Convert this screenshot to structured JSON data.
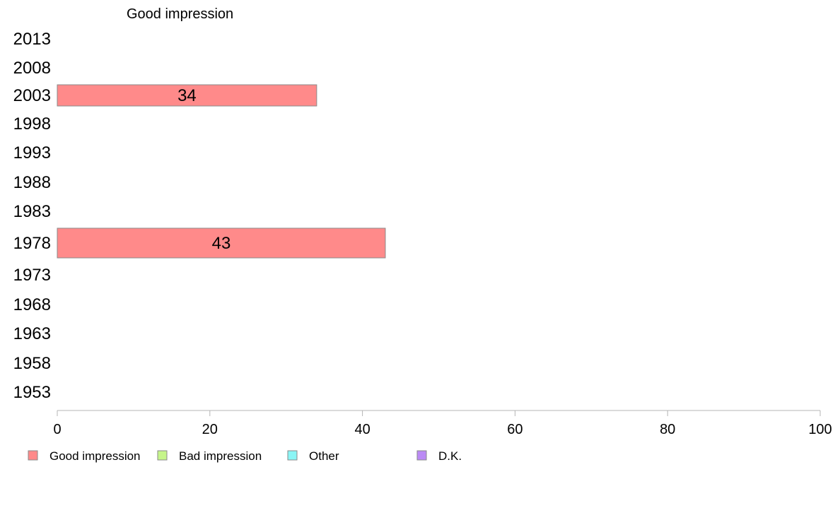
{
  "chart_data": {
    "type": "bar",
    "orientation": "horizontal",
    "title": "",
    "panel_title": "Good impression",
    "categories": [
      "2013",
      "2008",
      "2003",
      "1998",
      "1993",
      "1988",
      "1983",
      "1978",
      "1973",
      "1968",
      "1963",
      "1958",
      "1953"
    ],
    "series": [
      {
        "name": "Good impression",
        "color": "#ff8a8a",
        "values": [
          null,
          null,
          34,
          null,
          null,
          null,
          null,
          43,
          null,
          null,
          null,
          null,
          null
        ]
      },
      {
        "name": "Bad impression",
        "color": "#c6f58a",
        "values": [
          null,
          null,
          null,
          null,
          null,
          null,
          null,
          null,
          null,
          null,
          null,
          null,
          null
        ]
      },
      {
        "name": "Other",
        "color": "#8af5f5",
        "values": [
          null,
          null,
          null,
          null,
          null,
          null,
          null,
          null,
          null,
          null,
          null,
          null,
          null
        ]
      },
      {
        "name": "D.K.",
        "color": "#bb8af5",
        "values": [
          null,
          null,
          null,
          null,
          null,
          null,
          null,
          null,
          null,
          null,
          null,
          null,
          null
        ]
      }
    ],
    "xlim": [
      0,
      100
    ],
    "xticks": [
      "0",
      "20",
      "40",
      "60",
      "80",
      "100"
    ],
    "xlabel": "",
    "ylabel": "",
    "grid": false,
    "legend_position": "bottom-left"
  }
}
